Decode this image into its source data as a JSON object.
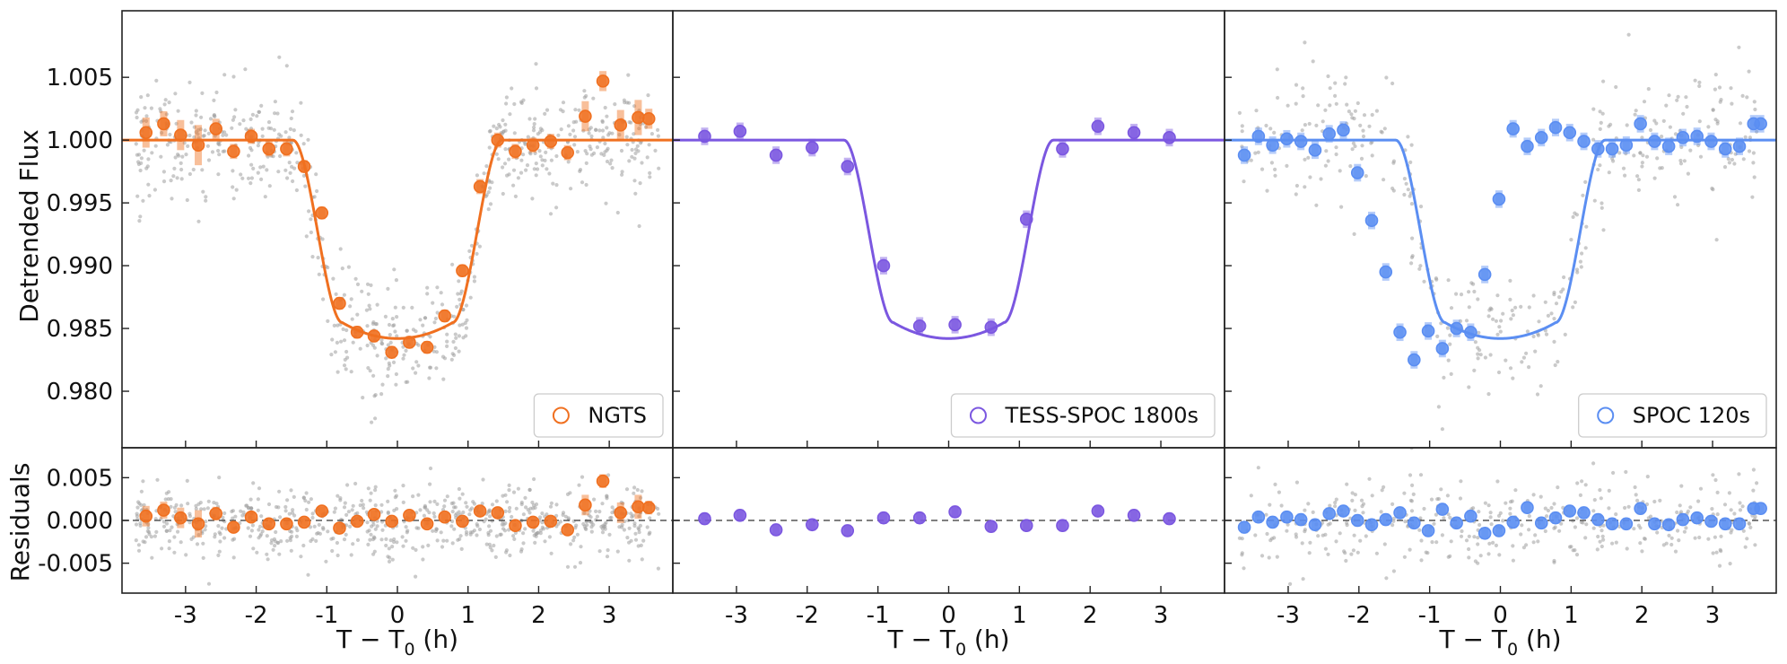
{
  "chart_data": {
    "type": "scatter",
    "figure_kind": "transit light curve with residuals, three instruments",
    "shared": {
      "xlabel_main": "T − T",
      "xlabel_sub": "0",
      "xlabel_unit": " (h)",
      "xlim": [
        -3.9,
        3.9
      ],
      "xticks": [
        -3,
        -2,
        -1,
        0,
        1,
        2,
        3
      ],
      "xtick_labels": [
        "-3",
        "-2",
        "-1",
        "0",
        "1",
        "2",
        "3"
      ],
      "top_ylabel": "Detrended Flux",
      "top_ylim": [
        0.9755,
        1.0103
      ],
      "top_yticks": [
        0.98,
        0.985,
        0.99,
        0.995,
        1.0,
        1.005
      ],
      "top_ytick_labels": [
        "0.980",
        "0.985",
        "0.990",
        "0.995",
        "1.000",
        "1.005"
      ],
      "bottom_ylabel": "Residuals",
      "bottom_ylim": [
        -0.0085,
        0.0085
      ],
      "bottom_yticks": [
        -0.005,
        0.0,
        0.005
      ],
      "bottom_ytick_labels": [
        "-0.005",
        "0.000",
        "0.005"
      ],
      "model": {
        "depth": 0.0158,
        "t1": 1.48,
        "t2": 0.78,
        "curvature": 0.08
      }
    },
    "panels": [
      {
        "legend": "NGTS",
        "color": "#f07020",
        "raw_scatter": true,
        "binned": {
          "x": [
            -3.56,
            -3.31,
            -3.07,
            -2.82,
            -2.57,
            -2.32,
            -2.07,
            -1.82,
            -1.57,
            -1.32,
            -1.07,
            -0.82,
            -0.57,
            -0.33,
            -0.08,
            0.17,
            0.42,
            0.67,
            0.92,
            1.17,
            1.42,
            1.67,
            1.92,
            2.17,
            2.41,
            2.66,
            2.91,
            3.16,
            3.41,
            3.56
          ],
          "flux": [
            1.0006,
            1.0013,
            1.0004,
            0.9996,
            1.0009,
            0.9991,
            1.0003,
            0.9993,
            0.9993,
            0.9979,
            0.9942,
            0.987,
            0.9847,
            0.9844,
            0.9831,
            0.9839,
            0.9835,
            0.986,
            0.9896,
            0.9963,
            1.0,
            0.9991,
            0.9996,
            0.9999,
            0.999,
            1.0019,
            1.0047,
            1.0012,
            1.0018,
            1.0017
          ],
          "flux_err": [
            0.0012,
            0.001,
            0.0012,
            0.0016,
            0.0008,
            0.0006,
            0.0006,
            0.0006,
            0.0006,
            0.0005,
            0.0005,
            0.0005,
            0.0005,
            0.0005,
            0.0005,
            0.0005,
            0.0005,
            0.0005,
            0.0005,
            0.0006,
            0.0006,
            0.0006,
            0.0006,
            0.0006,
            0.0006,
            0.0012,
            0.0008,
            0.0012,
            0.0014,
            0.0008
          ],
          "residuals": [
            0.0005,
            0.0012,
            0.0003,
            -0.0004,
            0.0008,
            -0.0008,
            0.0004,
            -0.0004,
            -0.0004,
            -0.0002,
            0.0011,
            -0.0009,
            -0.0001,
            0.0007,
            -0.0001,
            0.0006,
            -0.0004,
            0.0004,
            -0.0001,
            0.0011,
            0.0009,
            -0.0006,
            -0.0002,
            -0.0001,
            -0.0011,
            0.0018,
            0.0046,
            0.0009,
            0.0016,
            0.0015
          ],
          "res_err": [
            0.0012,
            0.001,
            0.0012,
            0.0016,
            0.0008,
            0.0006,
            0.0006,
            0.0006,
            0.0006,
            0.0005,
            0.0005,
            0.0005,
            0.0005,
            0.0005,
            0.0005,
            0.0005,
            0.0005,
            0.0005,
            0.0005,
            0.0006,
            0.0006,
            0.0006,
            0.0006,
            0.0006,
            0.0006,
            0.0012,
            0.0008,
            0.0012,
            0.0014,
            0.0008
          ]
        }
      },
      {
        "legend": "TESS-SPOC 1800s",
        "color": "#7b57e0",
        "raw_scatter": false,
        "binned": {
          "x": [
            -3.45,
            -2.95,
            -2.44,
            -1.93,
            -1.43,
            -0.92,
            -0.41,
            0.09,
            0.6,
            1.1,
            1.61,
            2.11,
            2.62,
            3.12
          ],
          "flux": [
            1.0003,
            1.0007,
            0.9988,
            0.9994,
            0.9979,
            0.99,
            0.9852,
            0.9853,
            0.9851,
            0.9937,
            0.9993,
            1.0011,
            1.0006,
            1.0002
          ],
          "flux_err": [
            0.0007,
            0.0007,
            0.0007,
            0.0007,
            0.0007,
            0.0007,
            0.0007,
            0.0007,
            0.0007,
            0.0007,
            0.0007,
            0.0007,
            0.0007,
            0.0007
          ],
          "residuals": [
            0.0002,
            0.0006,
            -0.0011,
            -0.0005,
            -0.0012,
            0.0003,
            0.0003,
            0.001,
            -0.0007,
            -0.0006,
            -0.0006,
            0.0011,
            0.0006,
            0.0002
          ],
          "res_err": [
            0.0007,
            0.0007,
            0.0007,
            0.0007,
            0.0007,
            0.0007,
            0.0007,
            0.0007,
            0.0007,
            0.0007,
            0.0007,
            0.0007,
            0.0007,
            0.0007
          ]
        }
      },
      {
        "legend": "SPOC 120s",
        "color": "#5b8ef2",
        "raw_scatter": true,
        "binned": {
          "x": [
            -3.62,
            -3.42,
            -3.22,
            -3.02,
            -2.82,
            -2.62,
            -2.42,
            -2.22,
            -2.02,
            -1.82,
            -1.62,
            -1.42,
            -1.22,
            -1.02,
            -0.82,
            -0.62,
            -0.42,
            -0.22,
            -0.02,
            0.18,
            0.38,
            0.58,
            0.78,
            0.98,
            1.18,
            1.38,
            1.58,
            1.78,
            1.98,
            2.18,
            2.38,
            2.58,
            2.78,
            2.98,
            3.18,
            3.38,
            3.58,
            3.68
          ],
          "flux": [
            0.9988,
            1.0003,
            0.9996,
            1.0001,
            0.9999,
            0.9992,
            1.0005,
            1.0008,
            0.9974,
            0.9936,
            0.9895,
            0.9847,
            0.9825,
            0.9848,
            0.9834,
            0.985,
            0.9847,
            0.9893,
            0.9953,
            1.0009,
            0.9995,
            1.0002,
            1.001,
            1.0006,
            0.9999,
            0.9993,
            0.9993,
            0.9996,
            1.0013,
            0.9999,
            0.9995,
            1.0002,
            1.0003,
            0.9999,
            0.9993,
            0.9995,
            1.0013,
            1.0013
          ],
          "flux_err": [
            0.0007,
            0.0007,
            0.0007,
            0.0007,
            0.0007,
            0.0007,
            0.0007,
            0.0007,
            0.0007,
            0.0007,
            0.0007,
            0.0007,
            0.0007,
            0.0007,
            0.0007,
            0.0007,
            0.0007,
            0.0007,
            0.0007,
            0.0007,
            0.0007,
            0.0007,
            0.0007,
            0.0007,
            0.0007,
            0.0007,
            0.0007,
            0.0007,
            0.0007,
            0.0007,
            0.0007,
            0.0007,
            0.0007,
            0.0007,
            0.0007,
            0.0007,
            0.0007,
            0.0007
          ],
          "residuals": [
            -0.0008,
            0.0004,
            -0.0002,
            0.0004,
            0.0001,
            -0.0005,
            0.0008,
            0.0011,
            0.0,
            -0.0005,
            0.0001,
            0.0009,
            -0.0003,
            -0.0012,
            0.0013,
            -0.0003,
            0.0005,
            -0.0015,
            -0.0012,
            -0.0002,
            0.0015,
            -0.0003,
            0.0003,
            0.0011,
            0.0009,
            0.0001,
            -0.0004,
            -0.0004,
            0.0014,
            -0.0004,
            -0.0005,
            0.0001,
            0.0003,
            -0.0001,
            -0.0004,
            -0.0004,
            0.0014,
            0.0014
          ],
          "res_err": [
            0.0007,
            0.0007,
            0.0007,
            0.0007,
            0.0007,
            0.0007,
            0.0007,
            0.0007,
            0.0007,
            0.0007,
            0.0007,
            0.0007,
            0.0007,
            0.0007,
            0.0007,
            0.0007,
            0.0007,
            0.0007,
            0.0007,
            0.0007,
            0.0007,
            0.0007,
            0.0007,
            0.0007,
            0.0007,
            0.0007,
            0.0007,
            0.0007,
            0.0007,
            0.0007,
            0.0007,
            0.0007,
            0.0007,
            0.0007,
            0.0007,
            0.0007,
            0.0007,
            0.0007
          ]
        }
      }
    ]
  }
}
